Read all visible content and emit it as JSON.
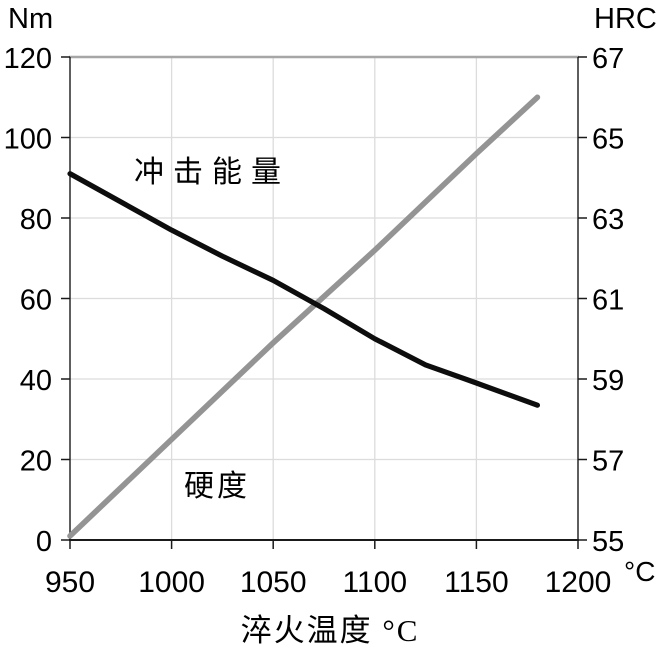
{
  "chart_data": {
    "type": "line",
    "title": "",
    "x_axis": {
      "title": "淬火温度 °C",
      "unit": "°C",
      "min": 950,
      "max": 1200,
      "ticks": [
        950,
        1000,
        1050,
        1100,
        1150,
        1200
      ]
    },
    "y_axis_left": {
      "title": "Nm",
      "min": 0,
      "max": 120,
      "ticks": [
        0,
        20,
        40,
        60,
        80,
        100,
        120
      ]
    },
    "y_axis_right": {
      "title": "HRC",
      "min": 55,
      "max": 67,
      "ticks": [
        55,
        57,
        59,
        61,
        63,
        65,
        67
      ]
    },
    "grid": true,
    "legend_position": "inline-annotations",
    "series": [
      {
        "name": "冲击能量",
        "axis": "left",
        "color": "#0d0d0d",
        "width": 5.2,
        "points": [
          [
            950,
            91
          ],
          [
            1000,
            77
          ],
          [
            1025,
            70.5
          ],
          [
            1050,
            64.5
          ],
          [
            1075,
            57.5
          ],
          [
            1100,
            50
          ],
          [
            1125,
            43.5
          ],
          [
            1150,
            39
          ],
          [
            1180,
            33.5
          ]
        ]
      },
      {
        "name": "硬度",
        "axis": "right",
        "color": "#949494",
        "width": 5.6,
        "points": [
          [
            950,
            55.1
          ],
          [
            1000,
            57.5
          ],
          [
            1050,
            59.9
          ],
          [
            1100,
            62.2
          ],
          [
            1150,
            64.6
          ],
          [
            1180,
            66.0
          ]
        ]
      }
    ],
    "colors": {
      "grid": "#dcdcdc",
      "frame_top": "#a6a6a6",
      "axis": "#1a1a1a",
      "text": "#000000"
    }
  }
}
